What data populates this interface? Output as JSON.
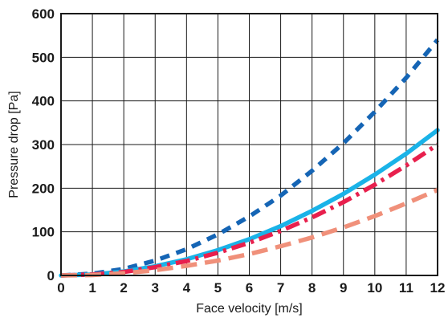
{
  "chart_data": {
    "type": "line",
    "title": "",
    "xlabel": "Face velocity  [m/s]",
    "ylabel": "Pressure drop  [Pa]",
    "xlim": [
      0,
      12
    ],
    "ylim": [
      0,
      600
    ],
    "x_ticks": [
      "0",
      "1",
      "2",
      "3",
      "4",
      "5",
      "6",
      "7",
      "8",
      "9",
      "10",
      "11",
      "12"
    ],
    "y_ticks": [
      "0",
      "100",
      "200",
      "300",
      "400",
      "500",
      "600"
    ],
    "grid": true,
    "legend": "none",
    "series": [
      {
        "color": "#1565b5",
        "style": "dashed-short",
        "x": [
          0,
          1,
          2,
          3,
          4,
          5,
          6,
          7,
          8,
          9,
          10,
          11,
          12
        ],
        "y": [
          0,
          4,
          15,
          34,
          60,
          94,
          135,
          183,
          240,
          303,
          375,
          453,
          540
        ]
      },
      {
        "color": "#1ab3e8",
        "style": "solid",
        "x": [
          0,
          1,
          2,
          3,
          4,
          5,
          6,
          7,
          8,
          9,
          10,
          11,
          12
        ],
        "y": [
          0,
          2,
          9,
          21,
          37,
          58,
          83,
          113,
          148,
          187,
          231,
          279,
          333
        ]
      },
      {
        "color": "#e8204d",
        "style": "dash-dot",
        "x": [
          0,
          1,
          2,
          3,
          4,
          5,
          6,
          7,
          8,
          9,
          10,
          11,
          12
        ],
        "y": [
          0,
          2,
          8,
          19,
          33,
          52,
          75,
          102,
          133,
          168,
          208,
          252,
          300
        ]
      },
      {
        "color": "#f0907a",
        "style": "dashed-long",
        "x": [
          0,
          1,
          2,
          3,
          4,
          5,
          6,
          7,
          8,
          9,
          10,
          11,
          12
        ],
        "y": [
          0,
          1,
          5,
          12,
          22,
          34,
          49,
          67,
          87,
          110,
          136,
          165,
          196
        ]
      }
    ]
  }
}
